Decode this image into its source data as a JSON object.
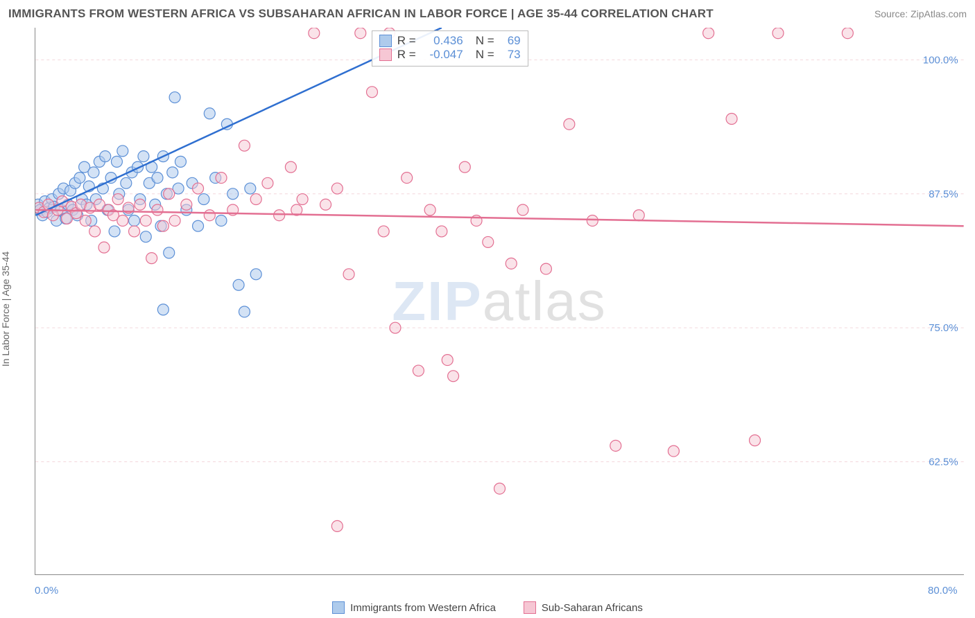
{
  "title": "IMMIGRANTS FROM WESTERN AFRICA VS SUBSAHARAN AFRICAN IN LABOR FORCE | AGE 35-44 CORRELATION CHART",
  "source": "Source: ZipAtlas.com",
  "y_label": "In Labor Force | Age 35-44",
  "watermark_a": "ZIP",
  "watermark_b": "atlas",
  "chart": {
    "type": "scatter",
    "x_domain": [
      0,
      80
    ],
    "y_domain": [
      52,
      103
    ],
    "x_ticks": [
      0,
      10,
      20,
      30,
      40,
      50,
      60,
      70,
      80
    ],
    "x_tick_labels": {
      "start": "0.0%",
      "end": "80.0%"
    },
    "y_ticks": [
      62.5,
      75.0,
      87.5,
      100.0
    ],
    "y_tick_labels": [
      "62.5%",
      "75.0%",
      "87.5%",
      "100.0%"
    ],
    "grid_color": "#f3d6dc",
    "axis_color": "#888888",
    "background": "#ffffff",
    "marker_radius": 8,
    "marker_stroke_width": 1.2,
    "trend_line_width": 2.5,
    "series": [
      {
        "name": "Immigrants from Western Africa",
        "fill": "#aecbec",
        "stroke": "#5b8fd6",
        "fill_opacity": 0.55,
        "trend": {
          "x1": 0,
          "y1": 85.5,
          "x2": 35,
          "y2": 103,
          "color": "#2f6fd0"
        },
        "corr": {
          "r": "0.436",
          "n": "69"
        },
        "points": [
          [
            0.2,
            86.5
          ],
          [
            0.4,
            86.0
          ],
          [
            0.6,
            85.5
          ],
          [
            0.8,
            86.8
          ],
          [
            1.0,
            85.8
          ],
          [
            1.2,
            86.2
          ],
          [
            1.4,
            87.0
          ],
          [
            1.6,
            86.3
          ],
          [
            1.8,
            85.0
          ],
          [
            2.0,
            87.5
          ],
          [
            2.2,
            86.0
          ],
          [
            2.4,
            88.0
          ],
          [
            2.6,
            85.2
          ],
          [
            2.8,
            86.5
          ],
          [
            3.0,
            87.8
          ],
          [
            3.2,
            86.0
          ],
          [
            3.4,
            88.5
          ],
          [
            3.6,
            85.5
          ],
          [
            3.8,
            89.0
          ],
          [
            4.0,
            87.0
          ],
          [
            4.2,
            90.0
          ],
          [
            4.4,
            86.5
          ],
          [
            4.6,
            88.2
          ],
          [
            4.8,
            85.0
          ],
          [
            5.0,
            89.5
          ],
          [
            5.2,
            87.0
          ],
          [
            5.5,
            90.5
          ],
          [
            5.8,
            88.0
          ],
          [
            6.0,
            91.0
          ],
          [
            6.2,
            86.0
          ],
          [
            6.5,
            89.0
          ],
          [
            6.8,
            84.0
          ],
          [
            7.0,
            90.5
          ],
          [
            7.2,
            87.5
          ],
          [
            7.5,
            91.5
          ],
          [
            7.8,
            88.5
          ],
          [
            8.0,
            86.0
          ],
          [
            8.3,
            89.5
          ],
          [
            8.5,
            85.0
          ],
          [
            8.8,
            90.0
          ],
          [
            9.0,
            87.0
          ],
          [
            9.3,
            91.0
          ],
          [
            9.5,
            83.5
          ],
          [
            9.8,
            88.5
          ],
          [
            10.0,
            90.0
          ],
          [
            10.3,
            86.5
          ],
          [
            10.5,
            89.0
          ],
          [
            10.8,
            84.5
          ],
          [
            11.0,
            91.0
          ],
          [
            11.3,
            87.5
          ],
          [
            11.5,
            82.0
          ],
          [
            11.8,
            89.5
          ],
          [
            12.0,
            96.5
          ],
          [
            12.3,
            88.0
          ],
          [
            12.5,
            90.5
          ],
          [
            13.0,
            86.0
          ],
          [
            13.5,
            88.5
          ],
          [
            14.0,
            84.5
          ],
          [
            14.5,
            87.0
          ],
          [
            15.0,
            95.0
          ],
          [
            15.5,
            89.0
          ],
          [
            16.0,
            85.0
          ],
          [
            16.5,
            94.0
          ],
          [
            17.0,
            87.5
          ],
          [
            17.5,
            79.0
          ],
          [
            18.0,
            76.5
          ],
          [
            18.5,
            88.0
          ],
          [
            19.0,
            80.0
          ],
          [
            11.0,
            76.7
          ]
        ]
      },
      {
        "name": "Sub-Saharan Africans",
        "fill": "#f6c7d4",
        "stroke": "#e36f92",
        "fill_opacity": 0.5,
        "trend": {
          "x1": 0,
          "y1": 86.0,
          "x2": 80,
          "y2": 84.5,
          "color": "#e36f92"
        },
        "corr": {
          "r": "-0.047",
          "n": "73"
        },
        "points": [
          [
            0.3,
            86.2
          ],
          [
            0.7,
            85.8
          ],
          [
            1.1,
            86.5
          ],
          [
            1.5,
            85.5
          ],
          [
            1.9,
            86.0
          ],
          [
            2.3,
            86.8
          ],
          [
            2.7,
            85.2
          ],
          [
            3.1,
            86.3
          ],
          [
            3.5,
            85.7
          ],
          [
            3.9,
            86.5
          ],
          [
            4.3,
            85.0
          ],
          [
            4.7,
            86.2
          ],
          [
            5.1,
            84.0
          ],
          [
            5.5,
            86.5
          ],
          [
            5.9,
            82.5
          ],
          [
            6.3,
            86.0
          ],
          [
            6.7,
            85.5
          ],
          [
            7.1,
            87.0
          ],
          [
            7.5,
            85.0
          ],
          [
            8.0,
            86.2
          ],
          [
            8.5,
            84.0
          ],
          [
            9.0,
            86.5
          ],
          [
            9.5,
            85.0
          ],
          [
            10.0,
            81.5
          ],
          [
            10.5,
            86.0
          ],
          [
            11.0,
            84.5
          ],
          [
            11.5,
            87.5
          ],
          [
            12.0,
            85.0
          ],
          [
            13.0,
            86.5
          ],
          [
            14.0,
            88.0
          ],
          [
            15.0,
            85.5
          ],
          [
            16.0,
            89.0
          ],
          [
            17.0,
            86.0
          ],
          [
            18.0,
            92.0
          ],
          [
            19.0,
            87.0
          ],
          [
            20.0,
            88.5
          ],
          [
            21.0,
            85.5
          ],
          [
            22.0,
            90.0
          ],
          [
            23.0,
            87.0
          ],
          [
            24.0,
            102.5
          ],
          [
            25.0,
            86.5
          ],
          [
            26.0,
            88.0
          ],
          [
            27.0,
            80.0
          ],
          [
            28.0,
            102.5
          ],
          [
            29.0,
            97.0
          ],
          [
            30.0,
            84.0
          ],
          [
            30.5,
            102.5
          ],
          [
            31.0,
            75.0
          ],
          [
            32.0,
            89.0
          ],
          [
            33.0,
            71.0
          ],
          [
            34.0,
            86.0
          ],
          [
            35.0,
            84.0
          ],
          [
            35.5,
            72.0
          ],
          [
            36.0,
            70.5
          ],
          [
            37.0,
            90.0
          ],
          [
            38.0,
            85.0
          ],
          [
            39.0,
            83.0
          ],
          [
            40.0,
            60.0
          ],
          [
            41.0,
            81.0
          ],
          [
            42.0,
            86.0
          ],
          [
            44.0,
            80.5
          ],
          [
            46.0,
            94.0
          ],
          [
            48.0,
            85.0
          ],
          [
            50.0,
            64.0
          ],
          [
            52.0,
            85.5
          ],
          [
            55.0,
            63.5
          ],
          [
            58.0,
            102.5
          ],
          [
            60.0,
            94.5
          ],
          [
            62.0,
            64.5
          ],
          [
            64.0,
            102.5
          ],
          [
            70.0,
            102.5
          ],
          [
            26.0,
            56.5
          ],
          [
            22.5,
            86.0
          ]
        ]
      }
    ]
  },
  "bottom_legend": [
    {
      "label": "Immigrants from Western Africa",
      "fill": "#aecbec",
      "stroke": "#5b8fd6"
    },
    {
      "label": "Sub-Saharan Africans",
      "fill": "#f6c7d4",
      "stroke": "#e36f92"
    }
  ]
}
